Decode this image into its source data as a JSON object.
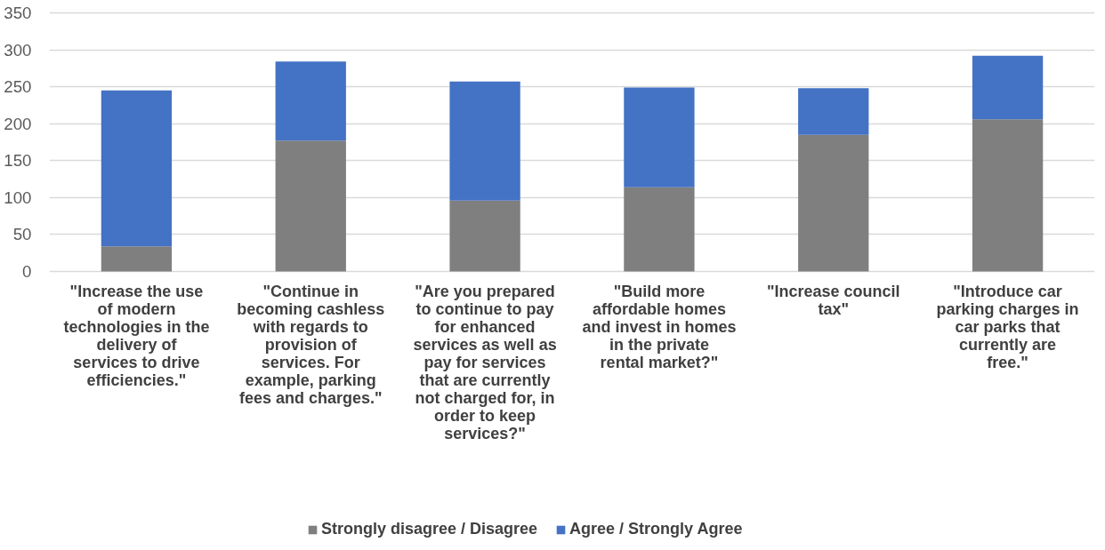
{
  "chart_data": {
    "type": "bar",
    "stacked": true,
    "categories": [
      "\"Increase the use of modern technologies in the delivery of services to drive efficiencies.\"",
      "\"Continue in becoming cashless with regards to provision of services. For example, parking fees and charges.\"",
      "\"Are you prepared to continue to pay for enhanced services as well as pay for services that are currently not charged for, in order to keep services?\"",
      "\"Build more affordable homes and invest in homes in the private rental market?\"",
      "\"Increase council tax\"",
      "\"Introduce car parking charges in car parks that currently are free.\""
    ],
    "series": [
      {
        "name": "Strongly disagree / Disagree",
        "color": "#7f7f7f",
        "values": [
          34,
          177,
          96,
          114,
          185,
          206
        ]
      },
      {
        "name": "Agree / Strongly Agree",
        "color": "#4472c4",
        "values": [
          211,
          107,
          161,
          135,
          63,
          86
        ]
      }
    ],
    "ylim": [
      0,
      350
    ],
    "yticks": [
      0,
      50,
      100,
      150,
      200,
      250,
      300,
      350
    ],
    "grid": "y",
    "legend": "bottom"
  }
}
